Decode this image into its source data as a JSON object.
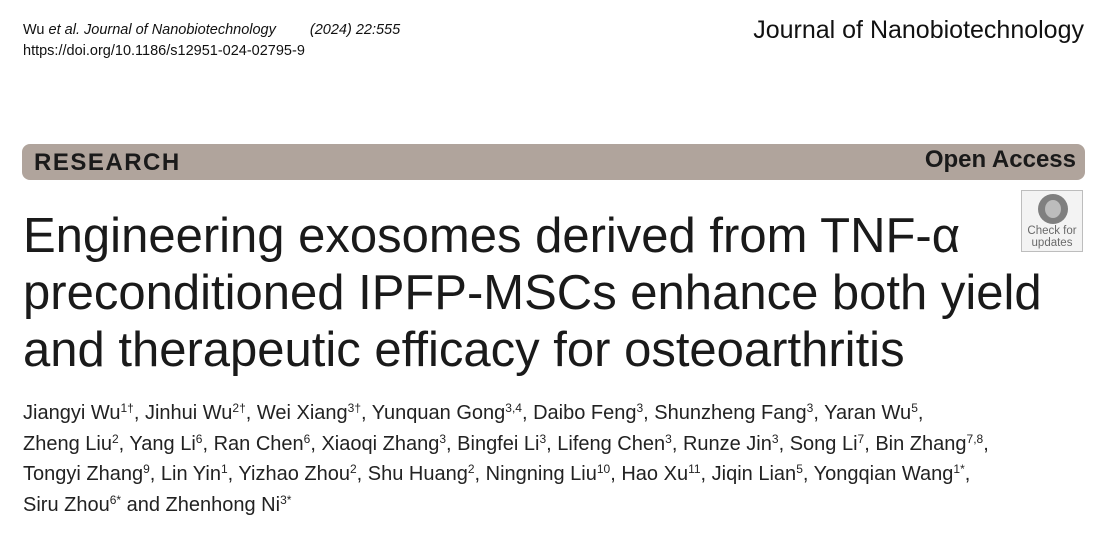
{
  "header": {
    "citation_author": "Wu",
    "citation_etal": "et al.",
    "citation_journal": "Journal of Nanobiotechnology",
    "citation_volume": "(2024) 22:555",
    "doi": "https://doi.org/10.1186/s12951-024-02795-9",
    "journal_name": "Journal of Nanobiotechnology"
  },
  "banner": {
    "article_type": "RESEARCH",
    "access": "Open Access"
  },
  "check_updates": {
    "line1": "Check for",
    "line2": "updates"
  },
  "article": {
    "title_lines": [
      "Engineering exosomes derived from TNF-α",
      "preconditioned IPFP-MSCs enhance both yield",
      "and therapeutic efficacy for osteoarthritis"
    ]
  },
  "authors": [
    {
      "name": "Jiangyi Wu",
      "aff": "1†"
    },
    {
      "name": "Jinhui Wu",
      "aff": "2†"
    },
    {
      "name": "Wei Xiang",
      "aff": "3†"
    },
    {
      "name": "Yunquan Gong",
      "aff": "3,4"
    },
    {
      "name": "Daibo Feng",
      "aff": "3"
    },
    {
      "name": "Shunzheng Fang",
      "aff": "3"
    },
    {
      "name": "Yaran Wu",
      "aff": "5"
    },
    {
      "name": "Zheng Liu",
      "aff": "2"
    },
    {
      "name": "Yang Li",
      "aff": "6"
    },
    {
      "name": "Ran Chen",
      "aff": "6"
    },
    {
      "name": "Xiaoqi Zhang",
      "aff": "3"
    },
    {
      "name": "Bingfei Li",
      "aff": "3"
    },
    {
      "name": "Lifeng Chen",
      "aff": "3"
    },
    {
      "name": "Runze Jin",
      "aff": "3"
    },
    {
      "name": "Song Li",
      "aff": "7"
    },
    {
      "name": "Bin Zhang",
      "aff": "7,8"
    },
    {
      "name": "Tongyi Zhang",
      "aff": "9"
    },
    {
      "name": "Lin Yin",
      "aff": "1"
    },
    {
      "name": "Yizhao Zhou",
      "aff": "2"
    },
    {
      "name": "Shu Huang",
      "aff": "2"
    },
    {
      "name": "Ningning Liu",
      "aff": "10"
    },
    {
      "name": "Hao Xu",
      "aff": "11"
    },
    {
      "name": "Jiqin Lian",
      "aff": "5"
    },
    {
      "name": "Yongqian Wang",
      "aff": "1*"
    },
    {
      "name": "Siru Zhou",
      "aff": "6*"
    },
    {
      "name": "Zhenhong Ni",
      "aff": "3*"
    }
  ],
  "authors_conjunction": "and"
}
